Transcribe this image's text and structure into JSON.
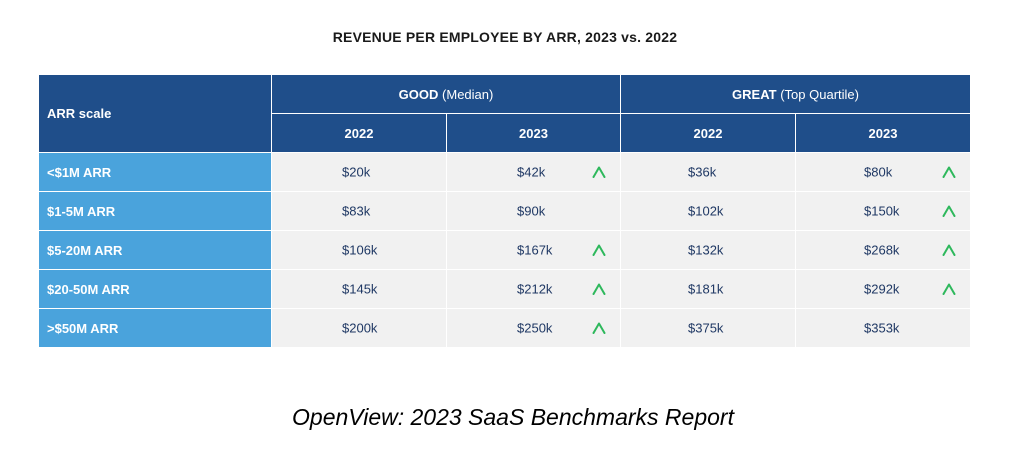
{
  "title": "REVENUE PER EMPLOYEE BY ARR, 2023 vs. 2022",
  "footer": "OpenView: 2023 SaaS Benchmarks Report",
  "colors": {
    "header": "#1f4e8a",
    "row_label": "#4aa3dc",
    "cell": "#f1f1f1",
    "value_text": "#1f3864",
    "up_arrow": "#2eb85c"
  },
  "chart_data": {
    "type": "table",
    "title": "REVENUE PER EMPLOYEE BY ARR, 2023 vs. 2022",
    "row_header": "ARR scale",
    "groups": [
      {
        "name": "GOOD",
        "qualifier": "(Median)",
        "years": [
          "2022",
          "2023"
        ]
      },
      {
        "name": "GREAT",
        "qualifier": "(Top Quartile)",
        "years": [
          "2022",
          "2023"
        ]
      }
    ],
    "rows": [
      {
        "label": "<$1M ARR",
        "values": [
          "$20k",
          "$42k",
          "$36k",
          "$80k"
        ],
        "up": [
          false,
          true,
          false,
          true
        ]
      },
      {
        "label": "$1-5M ARR",
        "values": [
          "$83k",
          "$90k",
          "$102k",
          "$150k"
        ],
        "up": [
          false,
          false,
          false,
          true
        ]
      },
      {
        "label": "$5-20M ARR",
        "values": [
          "$106k",
          "$167k",
          "$132k",
          "$268k"
        ],
        "up": [
          false,
          true,
          false,
          true
        ]
      },
      {
        "label": "$20-50M ARR",
        "values": [
          "$145k",
          "$212k",
          "$181k",
          "$292k"
        ],
        "up": [
          false,
          true,
          false,
          true
        ]
      },
      {
        "label": ">$50M ARR",
        "values": [
          "$200k",
          "$250k",
          "$375k",
          "$353k"
        ],
        "up": [
          false,
          true,
          false,
          false
        ]
      }
    ]
  }
}
